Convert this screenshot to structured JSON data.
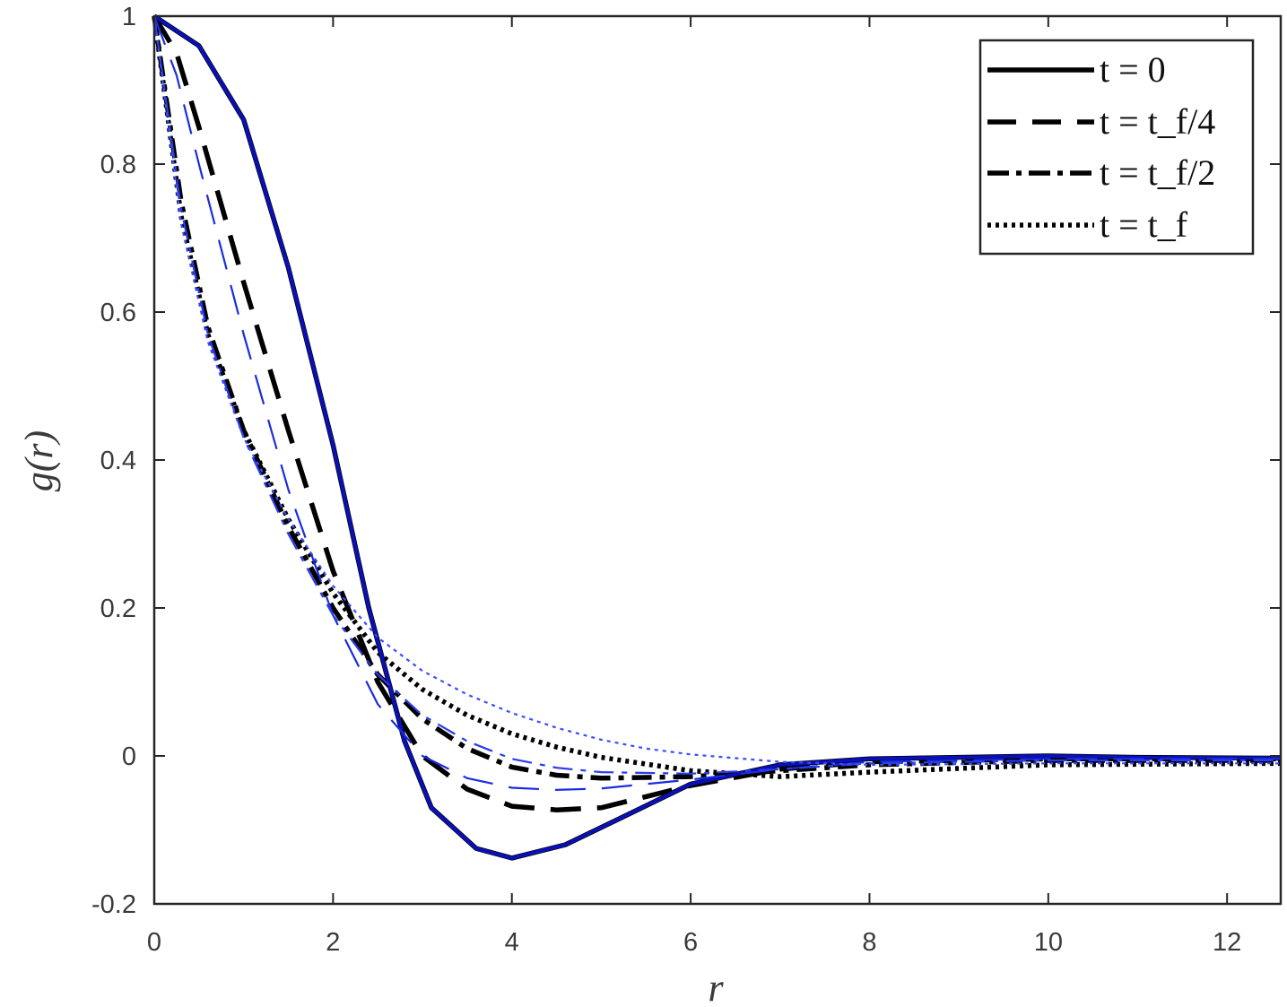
{
  "chart_data": {
    "type": "line",
    "xlabel": "r",
    "ylabel": "g(r)",
    "xlim": [
      0,
      12.6
    ],
    "ylim": [
      -0.2,
      1.0
    ],
    "xticks": [
      0,
      2,
      4,
      6,
      8,
      10,
      12
    ],
    "yticks": [
      -0.2,
      0,
      0.2,
      0.4,
      0.6,
      0.8,
      1
    ],
    "xtick_labels": [
      "0",
      "2",
      "4",
      "6",
      "8",
      "10",
      "12"
    ],
    "ytick_labels": [
      "-0.2",
      "0",
      "0.2",
      "0.4",
      "0.6",
      "0.8",
      "1"
    ],
    "grid": false,
    "legend_position": "top-right",
    "legend": [
      {
        "label": "t = 0",
        "style": "solid"
      },
      {
        "label": "t = t_f/4",
        "style": "dashed"
      },
      {
        "label": "t = t_f/2",
        "style": "dashdot"
      },
      {
        "label": "t = t_f",
        "style": "dotted"
      }
    ],
    "series": [
      {
        "legend_index": 0,
        "color": "#000000",
        "style": "solid",
        "role": "black",
        "x": [
          0,
          0.5,
          1,
          1.5,
          2,
          2.4,
          2.8,
          3.1,
          3.6,
          4.0,
          4.6,
          5.2,
          6.0,
          7.0,
          8.0,
          9.0,
          10.0,
          11.0,
          12.6
        ],
        "y": [
          1.0,
          0.96,
          0.86,
          0.66,
          0.42,
          0.2,
          0.02,
          -0.07,
          -0.125,
          -0.138,
          -0.12,
          -0.085,
          -0.038,
          -0.012,
          -0.004,
          -0.002,
          0.0,
          -0.002,
          -0.003
        ]
      },
      {
        "legend_index": 0,
        "color": "#0a10b8",
        "style": "solid",
        "role": "blue",
        "x": [
          0,
          0.5,
          1,
          1.5,
          2,
          2.4,
          2.8,
          3.1,
          3.6,
          4.0,
          4.6,
          5.2,
          6.0,
          7.0,
          8.0,
          9.0,
          10.0,
          11.0,
          12.6
        ],
        "y": [
          1.0,
          0.96,
          0.86,
          0.66,
          0.42,
          0.2,
          0.02,
          -0.07,
          -0.125,
          -0.138,
          -0.12,
          -0.085,
          -0.038,
          -0.012,
          -0.004,
          -0.002,
          0.0,
          -0.002,
          -0.003
        ]
      },
      {
        "legend_index": 1,
        "color": "#000000",
        "style": "dashed",
        "role": "black",
        "x": [
          0,
          0.25,
          0.5,
          1.0,
          1.5,
          2.0,
          2.5,
          3.0,
          3.5,
          4.0,
          4.5,
          5.0,
          5.5,
          6.0,
          7.0,
          8.0,
          10.0,
          12.6
        ],
        "y": [
          1.0,
          0.95,
          0.85,
          0.64,
          0.44,
          0.25,
          0.1,
          0.0,
          -0.045,
          -0.068,
          -0.073,
          -0.07,
          -0.055,
          -0.04,
          -0.018,
          -0.008,
          -0.004,
          -0.004
        ]
      },
      {
        "legend_index": 1,
        "color": "#1a2de0",
        "style": "dashed",
        "role": "blue",
        "x": [
          0,
          0.25,
          0.5,
          1.0,
          1.5,
          2.0,
          2.5,
          3.0,
          3.5,
          4.0,
          4.5,
          5.0,
          6.0,
          7.0,
          8.0,
          10.0,
          12.6
        ],
        "y": [
          1.0,
          0.92,
          0.8,
          0.57,
          0.36,
          0.19,
          0.07,
          0.0,
          -0.03,
          -0.043,
          -0.046,
          -0.044,
          -0.032,
          -0.018,
          -0.008,
          -0.004,
          -0.004
        ]
      },
      {
        "legend_index": 2,
        "color": "#000000",
        "style": "dashdot",
        "role": "black",
        "x": [
          0,
          0.3,
          0.6,
          1.0,
          1.5,
          2.0,
          2.5,
          3.0,
          3.5,
          4.0,
          4.5,
          5.0,
          6.0,
          7.0,
          8.0,
          10.0,
          12.6
        ],
        "y": [
          1.0,
          0.75,
          0.58,
          0.44,
          0.31,
          0.2,
          0.11,
          0.05,
          0.01,
          -0.015,
          -0.026,
          -0.03,
          -0.028,
          -0.02,
          -0.012,
          -0.006,
          -0.006
        ]
      },
      {
        "legend_index": 2,
        "color": "#2a3cf0",
        "style": "dashdot",
        "role": "blue",
        "x": [
          0,
          0.3,
          0.6,
          1.0,
          1.5,
          2.0,
          2.5,
          3.0,
          3.5,
          4.0,
          4.5,
          5.0,
          6.0,
          7.0,
          8.0,
          10.0,
          12.6
        ],
        "y": [
          1.0,
          0.74,
          0.57,
          0.43,
          0.3,
          0.19,
          0.11,
          0.055,
          0.02,
          -0.004,
          -0.016,
          -0.022,
          -0.024,
          -0.018,
          -0.01,
          -0.006,
          -0.006
        ]
      },
      {
        "legend_index": 3,
        "color": "#000000",
        "style": "dotted",
        "role": "black",
        "x": [
          0,
          0.3,
          0.6,
          1.0,
          1.5,
          2.0,
          2.5,
          3.0,
          3.5,
          4.0,
          4.5,
          5.0,
          6.0,
          7.0,
          8.0,
          10.0,
          12.6
        ],
        "y": [
          1.0,
          0.73,
          0.57,
          0.44,
          0.32,
          0.22,
          0.14,
          0.09,
          0.055,
          0.03,
          0.012,
          -0.002,
          -0.02,
          -0.028,
          -0.022,
          -0.012,
          -0.01
        ]
      },
      {
        "legend_index": 3,
        "color": "#3a4cff",
        "style": "dotted",
        "role": "blue",
        "x": [
          0,
          0.3,
          0.6,
          1.0,
          1.5,
          2.0,
          2.5,
          3.0,
          3.5,
          4.0,
          4.5,
          5.0,
          5.5,
          6.0,
          7.0,
          8.0,
          10.0,
          12.6
        ],
        "y": [
          1.0,
          0.72,
          0.56,
          0.43,
          0.32,
          0.23,
          0.16,
          0.115,
          0.083,
          0.058,
          0.038,
          0.022,
          0.01,
          0.002,
          -0.008,
          -0.012,
          -0.01,
          -0.01
        ]
      }
    ]
  }
}
